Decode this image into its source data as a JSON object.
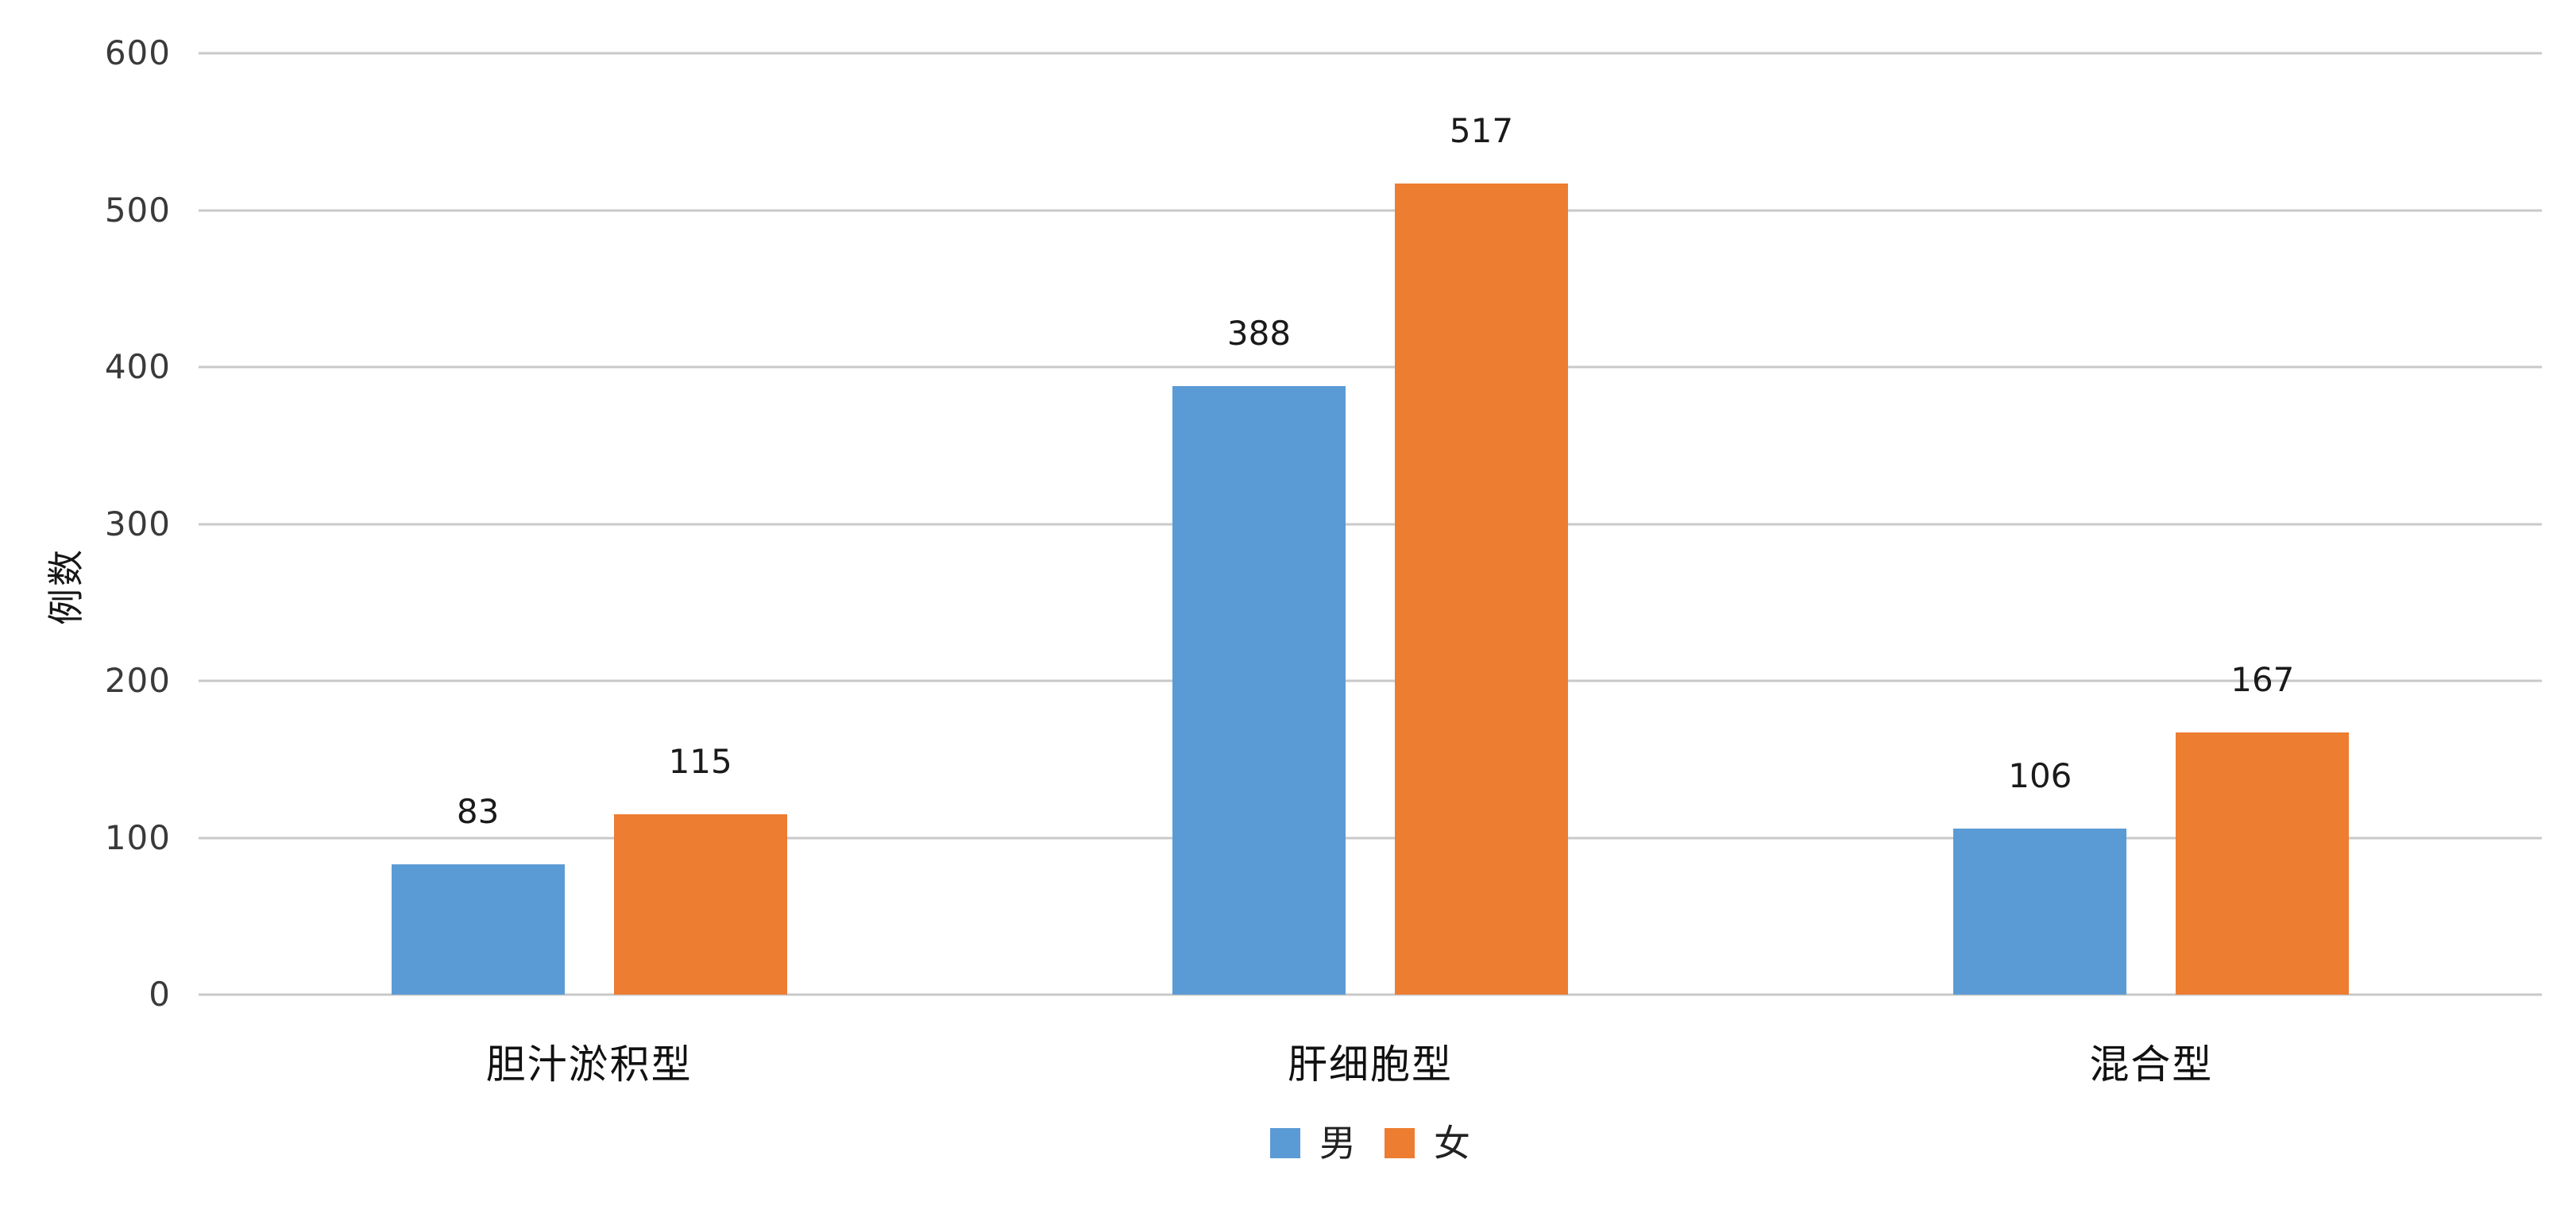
{
  "chart_data": {
    "type": "bar",
    "title": "",
    "categories": [
      "胆汁淤积型",
      "肝细胞型",
      "混合型"
    ],
    "series": [
      {
        "name": "男",
        "color": "#5B9BD5",
        "values": [
          83,
          388,
          106
        ]
      },
      {
        "name": "女",
        "color": "#ED7D31",
        "values": [
          115,
          517,
          167
        ]
      }
    ],
    "xlabel": "",
    "ylabel": "例数",
    "ylim": [
      0,
      600
    ],
    "yticks": [
      0,
      100,
      200,
      300,
      400,
      500,
      600
    ],
    "grid": true,
    "gridline_color": "#C9C9C9",
    "data_labels": true,
    "legend_position": "bottom",
    "background": "#ffffff"
  }
}
